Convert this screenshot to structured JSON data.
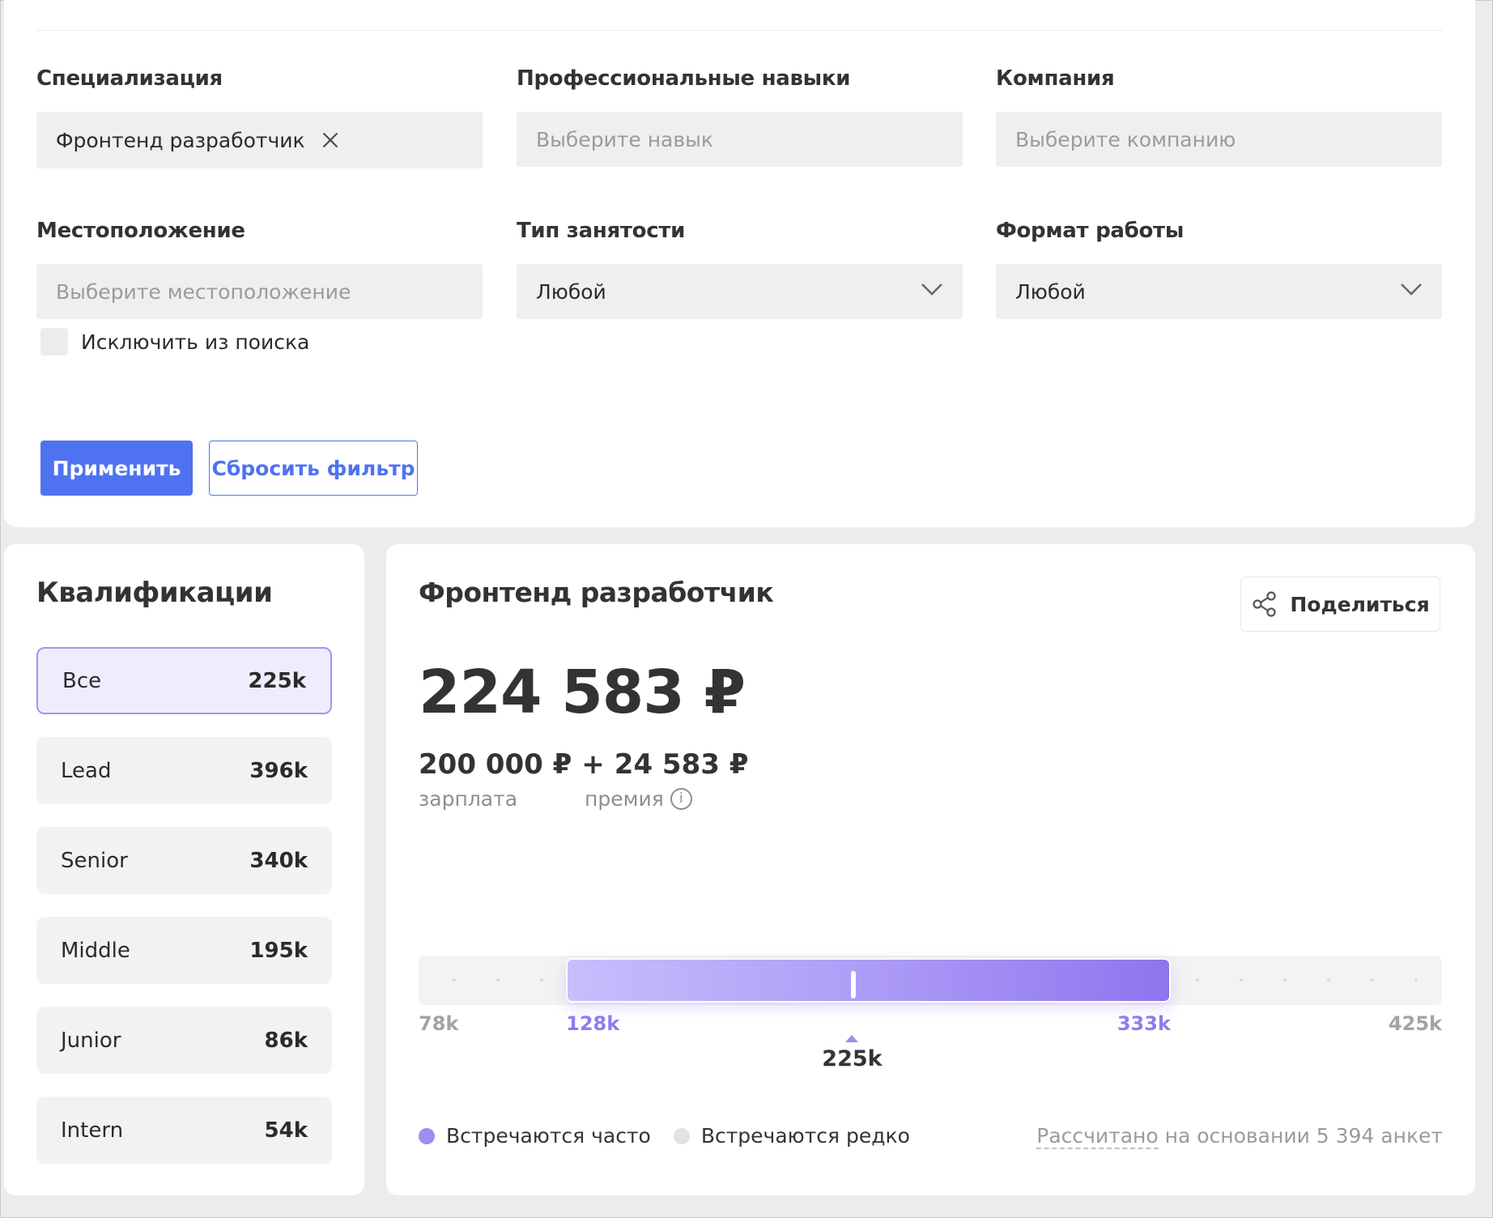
{
  "filters": {
    "specialization": {
      "label": "Специализация",
      "value": "Фронтенд разработчик"
    },
    "skills": {
      "label": "Профессиональные навыки",
      "placeholder": "Выберите навык"
    },
    "company": {
      "label": "Компания",
      "placeholder": "Выберите компанию"
    },
    "location": {
      "label": "Местоположение",
      "placeholder": "Выберите местоположение",
      "exclude_label": "Исключить из поиска"
    },
    "employment": {
      "label": "Тип занятости",
      "value": "Любой"
    },
    "work_format": {
      "label": "Формат работы",
      "value": "Любой"
    },
    "apply_label": "Применить",
    "reset_label": "Сбросить фильтр"
  },
  "qualifications": {
    "title": "Квалификации",
    "items": [
      {
        "name": "Все",
        "value": "225k",
        "active": true
      },
      {
        "name": "Lead",
        "value": "396k"
      },
      {
        "name": "Senior",
        "value": "340k"
      },
      {
        "name": "Middle",
        "value": "195k"
      },
      {
        "name": "Junior",
        "value": "86k"
      },
      {
        "name": "Intern",
        "value": "54k"
      }
    ]
  },
  "salary": {
    "title": "Фронтенд разработчик",
    "share_label": "Поделиться",
    "total": "224 583 ₽",
    "base": "200 000 ₽",
    "plus": "+",
    "bonus": "24 583 ₽",
    "base_label": "зарплата",
    "bonus_label": "премия",
    "range": {
      "min": 78,
      "low": 128,
      "median": 225,
      "high": 333,
      "max": 425,
      "min_label": "78k",
      "low_label": "128k",
      "median_label": "225k",
      "high_label": "333k",
      "max_label": "425k"
    },
    "legend": {
      "frequent": "Встречаются часто",
      "rare": "Встречаются редко"
    },
    "footnote_link": "Рассчитано",
    "footnote_rest": " на основании 5 394 анкет"
  },
  "colors": {
    "accent": "#4f73f0",
    "range_frequent": "#9e8cf0",
    "range_rare": "#e2e2e2",
    "qual_active_border": "#a294ef"
  }
}
